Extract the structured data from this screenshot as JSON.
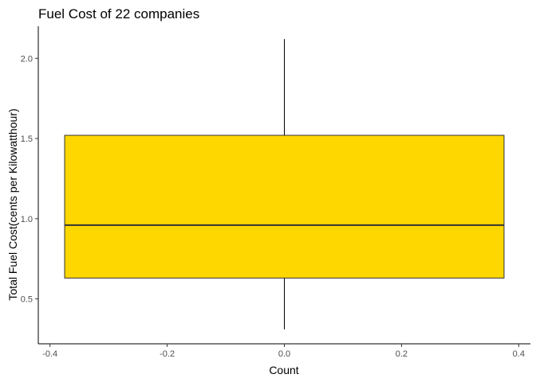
{
  "chart_data": {
    "type": "boxplot",
    "title": "Fuel Cost of 22 companies",
    "xlabel": "Count",
    "ylabel": "Total Fuel Cost(cents per Kilowatthour)",
    "xlim": [
      -0.42,
      0.42
    ],
    "ylim": [
      0.22,
      2.2
    ],
    "x_ticks": [
      -0.4,
      -0.2,
      0.0,
      0.2,
      0.4
    ],
    "x_tick_labels": [
      "-0.4",
      "-0.2",
      "0.0",
      "0.2",
      "0.4"
    ],
    "y_ticks": [
      0.5,
      1.0,
      1.5,
      2.0
    ],
    "y_tick_labels": [
      "0.5",
      "1.0",
      "1.5",
      "2.0"
    ],
    "grid": false,
    "box": {
      "x_center": 0.0,
      "x_left": -0.375,
      "x_right": 0.375,
      "min": 0.31,
      "q1": 0.63,
      "median": 0.96,
      "q3": 1.52,
      "max": 2.12,
      "fill_color": "#FFD700",
      "border_color": "#333333"
    }
  }
}
